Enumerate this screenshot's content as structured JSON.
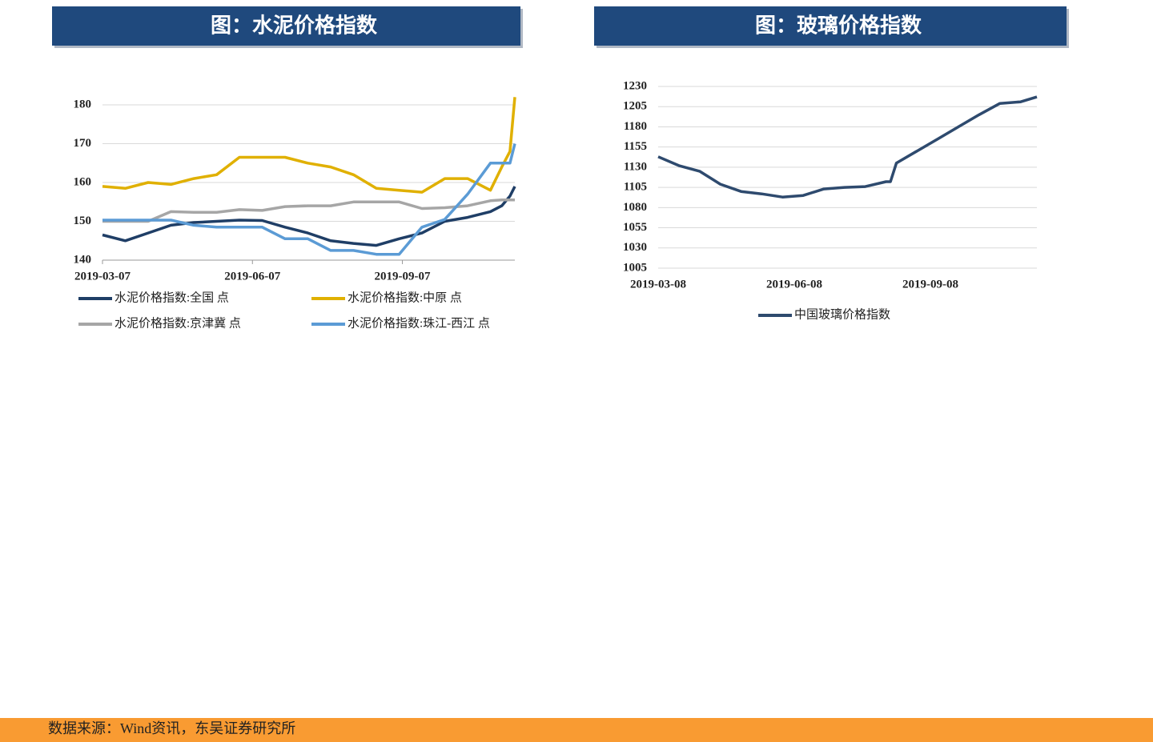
{
  "chart_data": [
    {
      "type": "line",
      "title": "图：水泥价格指数",
      "x": [
        "2019-03-07",
        "2019-03-21",
        "2019-04-04",
        "2019-04-18",
        "2019-05-02",
        "2019-05-16",
        "2019-05-30",
        "2019-06-13",
        "2019-06-27",
        "2019-07-11",
        "2019-07-25",
        "2019-08-08",
        "2019-08-22",
        "2019-09-05",
        "2019-09-19",
        "2019-10-03",
        "2019-10-17",
        "2019-10-31",
        "2019-11-07",
        "2019-11-12",
        "2019-11-15"
      ],
      "series": [
        {
          "name": "水泥价格指数:全国 点",
          "color": "#1f3e66",
          "values": [
            146.5,
            145,
            147,
            149,
            149.7,
            150,
            150.3,
            150.2,
            148.5,
            147,
            145,
            144.3,
            143.8,
            145.5,
            147,
            150,
            151,
            152.5,
            154,
            156.5,
            159
          ]
        },
        {
          "name": "水泥价格指数:中原 点",
          "color": "#e0b000",
          "values": [
            159,
            158.5,
            160,
            159.5,
            161,
            162,
            166.5,
            166.5,
            166.5,
            165,
            164,
            162,
            158.5,
            158,
            157.5,
            161,
            161,
            158,
            164,
            168,
            182
          ]
        },
        {
          "name": "水泥价格指数:京津冀 点",
          "color": "#a6a6a6",
          "values": [
            150,
            150,
            150,
            152.5,
            152.3,
            152.3,
            153,
            152.8,
            153.8,
            154,
            154,
            155,
            155,
            155,
            153.3,
            153.5,
            154,
            155.3,
            155.5,
            155.5,
            155.5
          ]
        },
        {
          "name": "水泥价格指数:珠江-西江 点",
          "color": "#5b9bd5",
          "values": [
            150.3,
            150.3,
            150.3,
            150.3,
            149,
            148.5,
            148.5,
            148.5,
            145.5,
            145.5,
            142.5,
            142.5,
            141.5,
            141.5,
            148.5,
            150.5,
            157,
            165,
            165,
            165,
            170
          ]
        }
      ],
      "xlim": [
        "2019-03-07",
        "2019-11-15"
      ],
      "xticks": [
        "2019-03-07",
        "2019-06-07",
        "2019-09-07"
      ],
      "ylim": [
        140,
        180
      ],
      "yticks": [
        140,
        150,
        160,
        170,
        180
      ],
      "grid": true
    },
    {
      "type": "line",
      "title": "图：玻璃价格指数",
      "x": [
        "2019-03-08",
        "2019-03-22",
        "2019-04-05",
        "2019-04-19",
        "2019-05-03",
        "2019-05-17",
        "2019-05-31",
        "2019-06-14",
        "2019-06-28",
        "2019-07-12",
        "2019-07-26",
        "2019-08-09",
        "2019-08-12",
        "2019-08-16",
        "2019-08-30",
        "2019-09-13",
        "2019-09-27",
        "2019-10-11",
        "2019-10-25",
        "2019-11-08",
        "2019-11-19"
      ],
      "series": [
        {
          "name": "中国玻璃价格指数",
          "color": "#2e4a6e",
          "values": [
            1143,
            1132,
            1125,
            1109,
            1100,
            1097,
            1093,
            1095,
            1103,
            1105,
            1106,
            1112,
            1112,
            1135,
            1150,
            1165,
            1180,
            1195,
            1209,
            1211,
            1217
          ]
        }
      ],
      "xlim": [
        "2019-03-08",
        "2019-11-19"
      ],
      "xticks": [
        "2019-03-08",
        "2019-06-08",
        "2019-09-08"
      ],
      "ylim": [
        1005,
        1230
      ],
      "yticks": [
        1005,
        1030,
        1055,
        1080,
        1105,
        1130,
        1155,
        1180,
        1205,
        1230
      ],
      "grid": true
    }
  ],
  "source": "数据来源：Wind资讯，东吴证券研究所"
}
